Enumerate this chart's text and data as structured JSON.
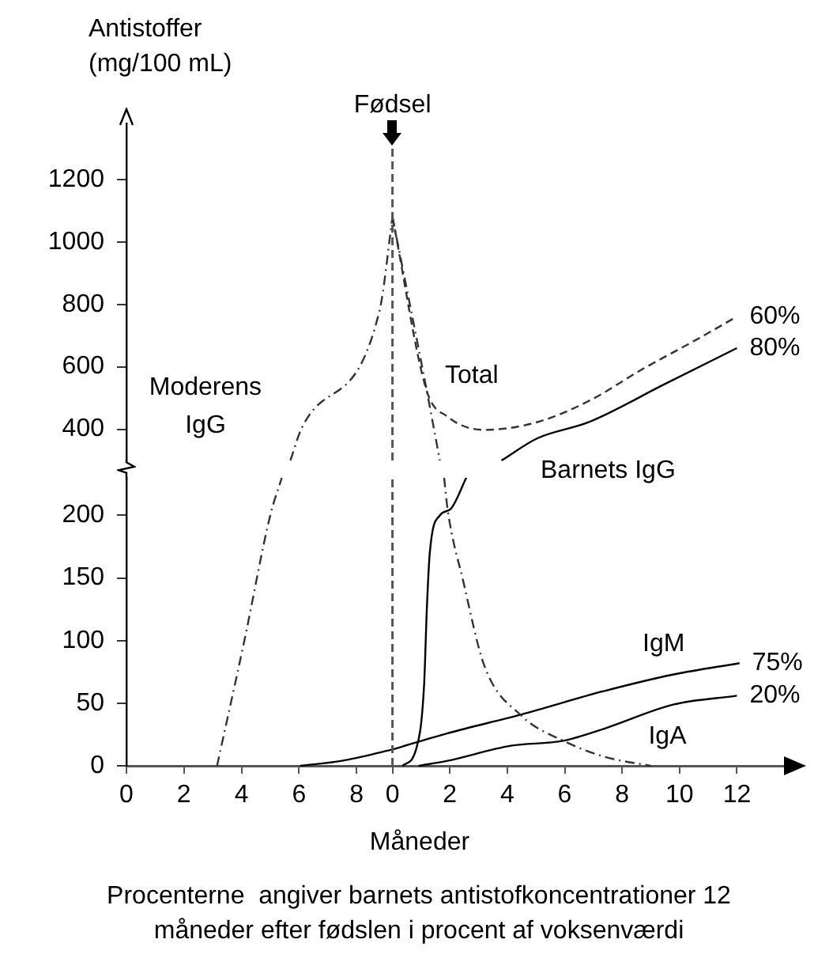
{
  "chart_data": [
    {
      "type": "line",
      "ylabel": "Antistoffer (mg/100 mL)",
      "xticks": [
        0,
        2,
        4,
        6,
        8
      ],
      "ylim": [
        300,
        1380
      ],
      "yticks": [
        400,
        600,
        800,
        1000,
        1200
      ],
      "tick_labels": "y",
      "grid": false,
      "legend": false,
      "marker": "none",
      "series": [
        {
          "name": "Moderens IgG",
          "color": "#333333",
          "line_style": "dashdot",
          "x": [
            5.7,
            6.1,
            8.8,
            9.25
          ],
          "values": [
            300,
            405,
            780,
            1080
          ]
        }
      ]
    },
    {
      "type": "line",
      "xticks": [
        0,
        2,
        4,
        6,
        8,
        10,
        12
      ],
      "ylim": [
        300,
        1380
      ],
      "yticks": [
        400,
        600,
        800,
        1000,
        1200
      ],
      "tick_labels": false,
      "grid": false,
      "legend": false,
      "marker": "none",
      "series": [
        {
          "color": "#333333",
          "line_style": "dashdot",
          "x": [
            0,
            1.15,
            1.65
          ],
          "values": [
            1080,
            545,
            300
          ]
        },
        {
          "name": "Total",
          "color": "#333333",
          "line_style": "dashed",
          "x": [
            0,
            1.19,
            1.92,
            3.2,
            5.05,
            6.85,
            8.7,
            10.55,
            12
          ],
          "values": [
            1080,
            524,
            440,
            398,
            423,
            491,
            592,
            685,
            761
          ]
        },
        {
          "name": "Barnets IgG",
          "color": "#000000",
          "line_style": "solid",
          "x": [
            3.8,
            5.05,
            6.85,
            9.45,
            12
          ],
          "values": [
            300,
            371,
            423,
            543,
            660
          ]
        }
      ],
      "ref_lines": [
        {
          "axis": "x",
          "value": 0,
          "label": "Fødsel",
          "line_style": "dashed",
          "color": "#555555"
        }
      ],
      "annotations": [
        "60%",
        "80%"
      ]
    },
    {
      "type": "line",
      "xlim": [
        0,
        9.25
      ],
      "xticks": [
        0,
        2,
        4,
        6,
        8
      ],
      "ylim": [
        0,
        230
      ],
      "yticks": [
        0,
        50,
        100,
        150,
        200
      ],
      "grid": false,
      "legend": false,
      "marker": "none",
      "series": [
        {
          "color": "#333333",
          "line_style": "dashdot",
          "x": [
            3.15,
            4.1,
            5.0,
            5.4
          ],
          "values": [
            0,
            100,
            200,
            230
          ]
        },
        {
          "color": "#000000",
          "line_style": "solid",
          "x": [
            6.04,
            7.5,
            9.25
          ],
          "values": [
            0,
            4,
            13
          ]
        }
      ]
    },
    {
      "type": "line",
      "xlabel": "Måneder",
      "xlim": [
        0,
        13.75
      ],
      "xticks": [
        0,
        2,
        4,
        6,
        8,
        10,
        12
      ],
      "ylim": [
        0,
        230
      ],
      "yticks": [
        0,
        50,
        100,
        150,
        200
      ],
      "tick_labels": "x",
      "grid": false,
      "legend": false,
      "marker": "none",
      "series": [
        {
          "color": "#333333",
          "line_style": "dashdot",
          "x": [
            1.8,
            1.92,
            2.47,
            3.2,
            4.49,
            5.95,
            7.42,
            9.0
          ],
          "values": [
            230,
            205,
            147,
            80,
            40,
            20,
            7,
            0
          ]
        },
        {
          "color": "#000000",
          "line_style": "solid",
          "x": [
            0.35,
            0.82,
            1.1,
            1.2,
            1.3,
            1.65,
            2.02,
            2.57
          ],
          "values": [
            0,
            13,
            64,
            127,
            170,
            200,
            205,
            230
          ]
        },
        {
          "name": "IgM",
          "color": "#000000",
          "line_style": "solid",
          "x": [
            0,
            1.92,
            4.49,
            7.42,
            9.8,
            12.09
          ],
          "values": [
            13,
            26,
            41,
            60,
            73,
            82
          ]
        },
        {
          "name": "IgA",
          "color": "#000000",
          "line_style": "solid",
          "x": [
            0.91,
            1.92,
            4.12,
            5.95,
            7.42,
            9.8,
            12
          ],
          "values": [
            0,
            4,
            16,
            20,
            30,
            49,
            56
          ]
        }
      ],
      "ref_lines": [
        {
          "axis": "x",
          "value": 0,
          "line_style": "dashed",
          "color": "#555555"
        }
      ],
      "annotations": [
        "75%",
        "20%",
        "Procenterne  angiver barnets antistofkoncentrationer 12 måneder efter fødslen i procent af voksenværdi"
      ]
    }
  ]
}
